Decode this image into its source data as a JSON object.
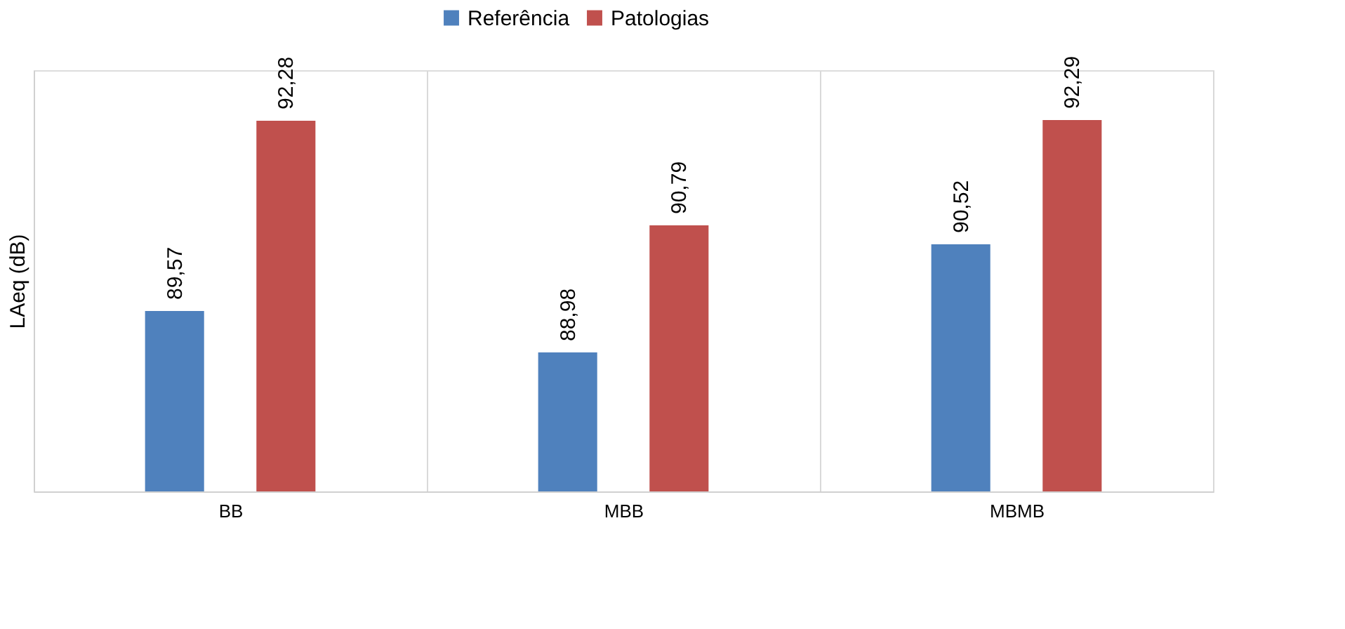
{
  "chart_data": {
    "type": "bar",
    "ylabel": "LAeq (dB)",
    "categories": [
      "BB",
      "MBB",
      "MBMB"
    ],
    "series": [
      {
        "name": "Referência",
        "color": "#4f81bd",
        "values": [
          89.57,
          88.98,
          90.52
        ],
        "value_labels": [
          "89,57",
          "88,98",
          "90,52"
        ]
      },
      {
        "name": "Patologias",
        "color": "#c0504d",
        "values": [
          92.28,
          90.79,
          92.29
        ],
        "value_labels": [
          "92,28",
          "90,79",
          "92,29"
        ]
      }
    ],
    "ylim": [
      87,
      93
    ],
    "grid": "x",
    "legend": "top",
    "tick_labels": "x"
  }
}
